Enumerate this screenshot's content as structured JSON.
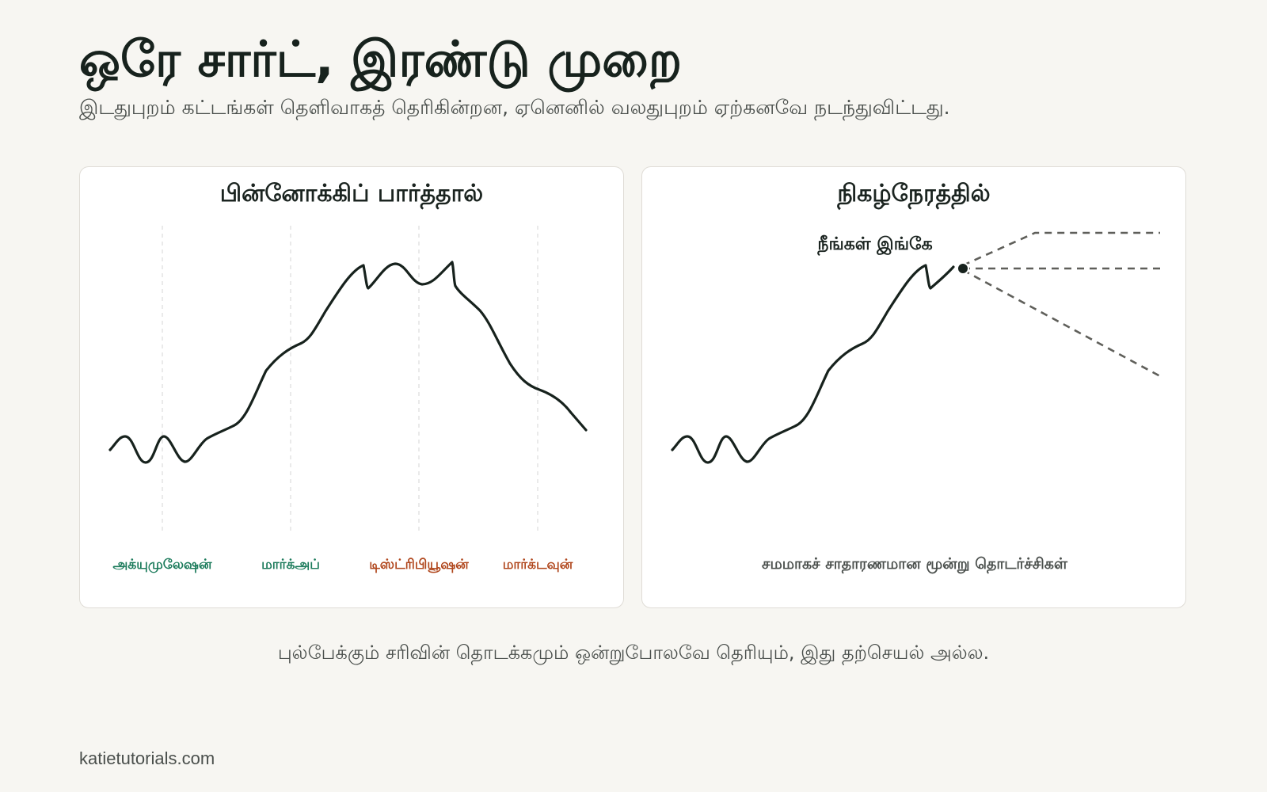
{
  "header": {
    "title": "ஒரே சார்ட், இரண்டு முறை",
    "subtitle": "இடதுபுறம் கட்டங்கள் தெளிவாகத் தெரிகின்றன, ஏனெனில் வலதுபுறம் ஏற்கனவே நடந்துவிட்டது."
  },
  "left_panel": {
    "title": "பின்னோக்கிப் பார்த்தால்",
    "phases": [
      {
        "label": "அக்யுமுலேஷன்",
        "color": "#1a7a5a"
      },
      {
        "label": "மார்க்அப்",
        "color": "#1a7a5a"
      },
      {
        "label": "டிஸ்ட்ரிபியூஷன்",
        "color": "#b0461c"
      },
      {
        "label": "மார்க்டவுன்",
        "color": "#b0461c"
      }
    ]
  },
  "right_panel": {
    "title": "நிகழ்நேரத்தில்",
    "marker_label": "நீங்கள் இங்கே",
    "footer_label": "சமமாகச் சாதாரணமான மூன்று தொடர்ச்சிகள்"
  },
  "caption": "புல்பேக்கும் சரிவின் தொடக்கமும் ஒன்றுபோலவே தெரியும், இது தற்செயல் அல்ல.",
  "footer": {
    "site": "katietutorials.com"
  },
  "colors": {
    "background": "#f7f6f2",
    "line": "#17221d",
    "dashed": "#5f5f5a",
    "accumulation_green": "#1a7a5a",
    "distribution_red": "#b0461c"
  }
}
